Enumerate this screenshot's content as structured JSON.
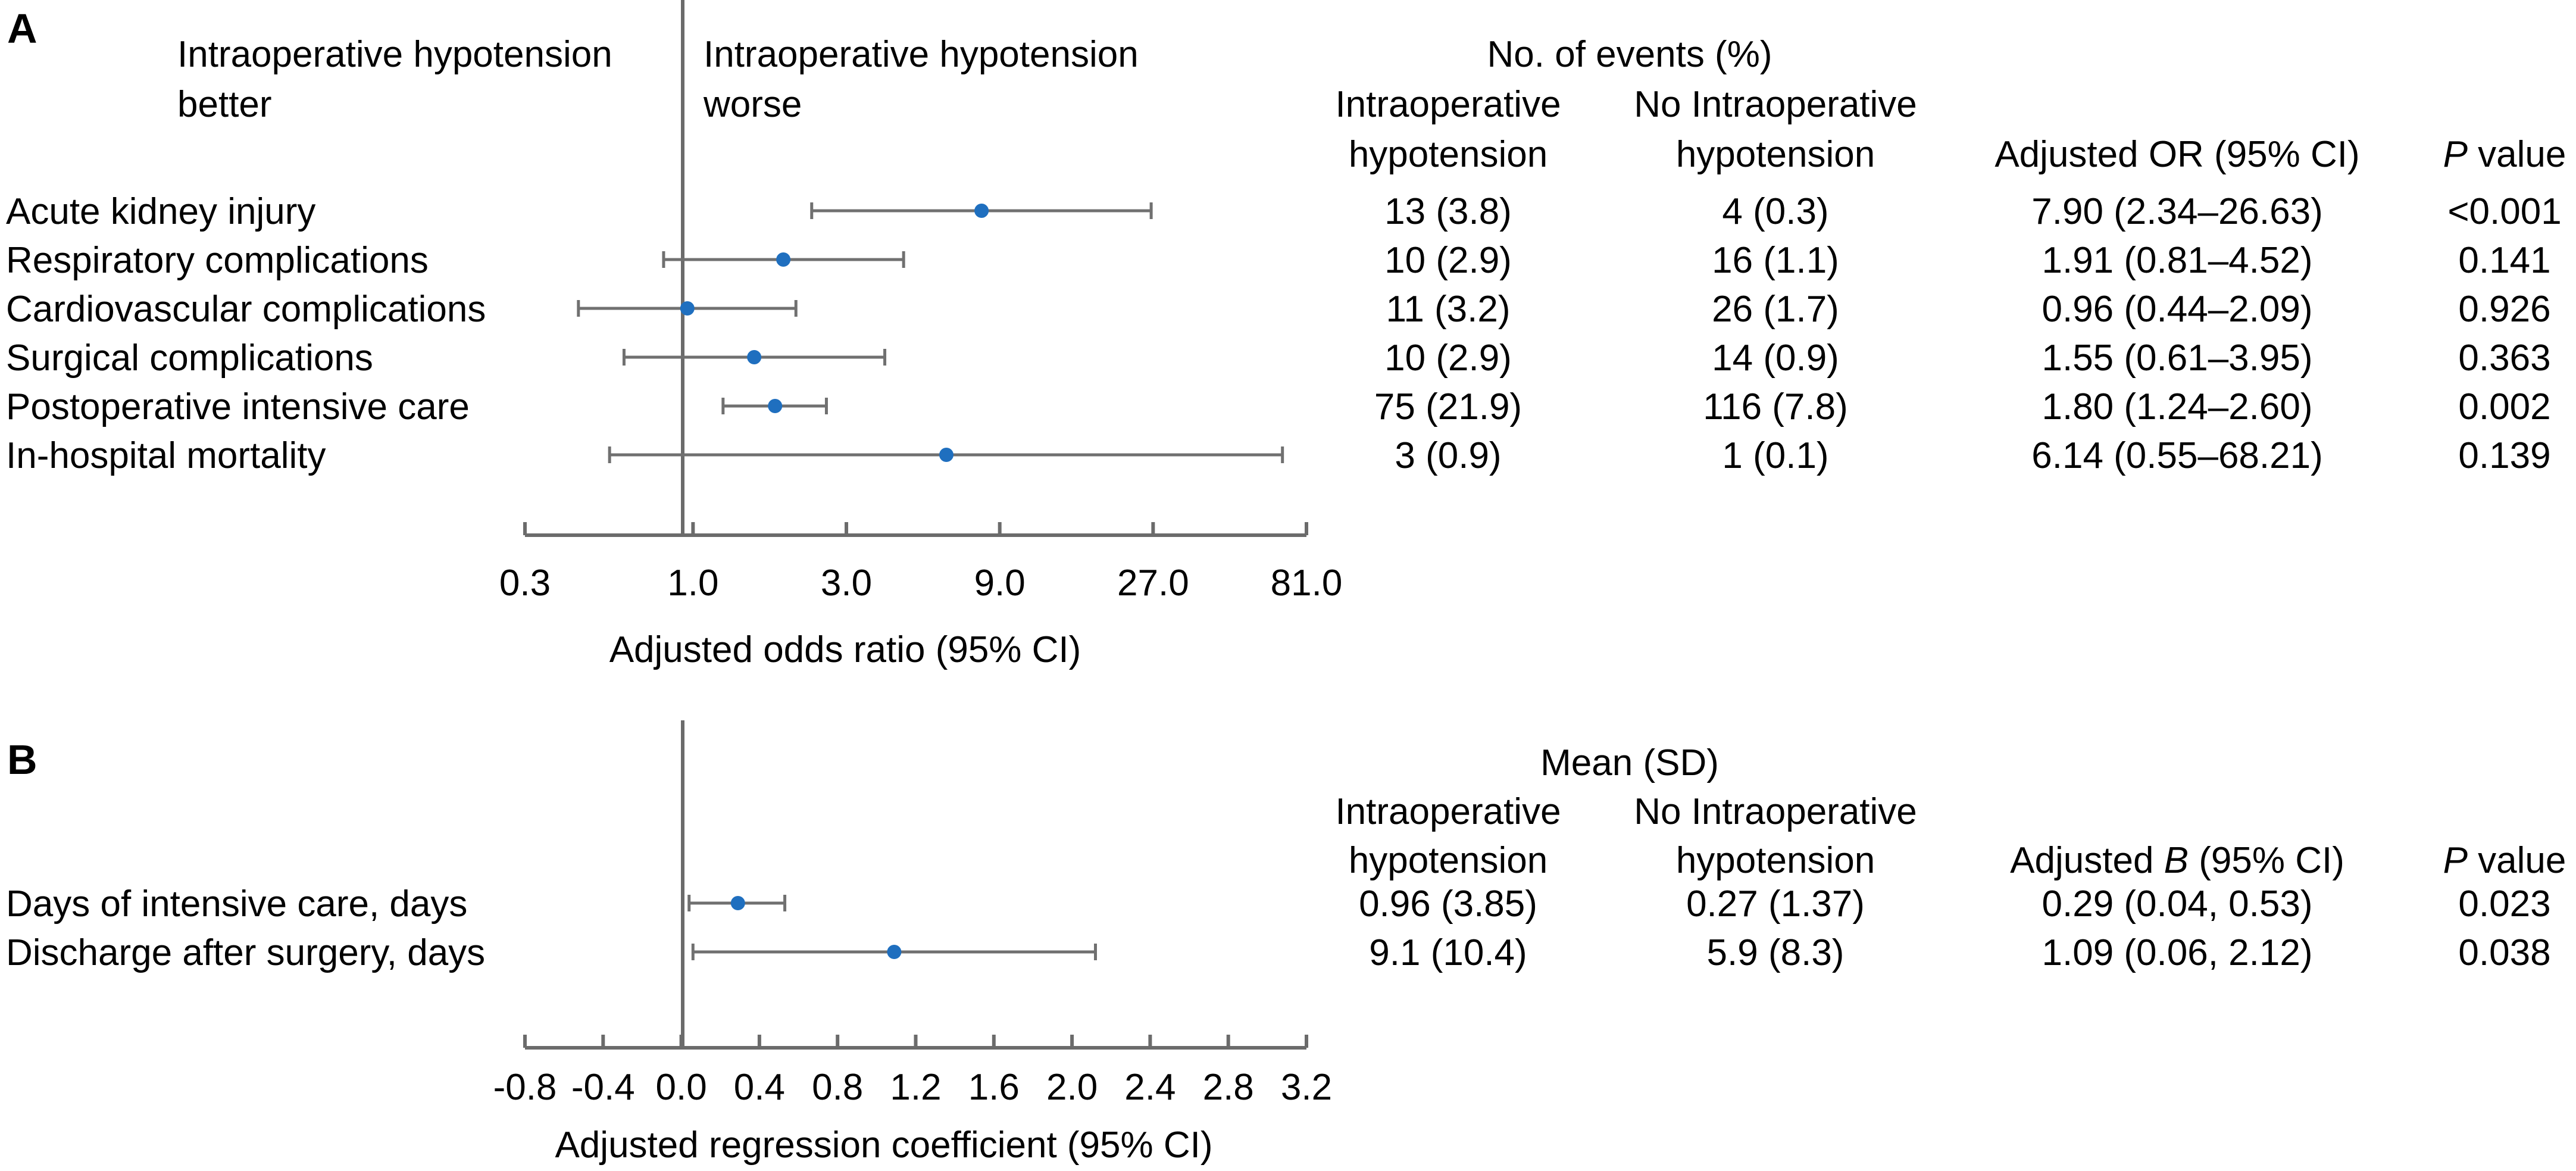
{
  "panel_a": {
    "letter": "A",
    "better_label": [
      "Intraoperative hypotension",
      "better"
    ],
    "worse_label": [
      "Intraoperative hypotension",
      "worse"
    ],
    "events_header": "No. of events (%)",
    "col_io": [
      "Intraoperative",
      "hypotension"
    ],
    "col_no": [
      "No Intraoperative",
      "hypotension"
    ],
    "col_est": "Adjusted OR (95% CI)",
    "col_p_italic": "P",
    "col_p_rest": " value",
    "xlabel": "Adjusted odds ratio (95% CI)"
  },
  "panel_b": {
    "letter": "B",
    "mean_header": "Mean (SD)",
    "col_io": [
      "Intraoperative",
      "hypotension"
    ],
    "col_no": [
      "No Intraoperative",
      "hypotension"
    ],
    "col_est_pre": "Adjusted ",
    "col_est_italic": "B",
    "col_est_post": " (95% CI)",
    "col_p_italic": "P",
    "col_p_rest": " value",
    "xlabel": "Adjusted regression coefficient (95% CI)"
  },
  "colors": {
    "point": "#1f6fbf",
    "axis": "#6b6b6b",
    "ci": "#707070"
  },
  "chart_data": [
    {
      "type": "forest",
      "panel": "A",
      "scale": "log3",
      "xlim": [
        0.3,
        81.0
      ],
      "reference": 1.0,
      "ticks": [
        "0.3",
        "1.0",
        "3.0",
        "9.0",
        "27.0",
        "81.0"
      ],
      "xlabel": "Adjusted odds ratio (95% CI)",
      "rows": [
        {
          "label": "Acute kidney injury",
          "io": "13 (3.8)",
          "no": "4 (0.3)",
          "est_text": "7.90 (2.34–26.63)",
          "p": "<0.001",
          "est": 7.9,
          "lo": 2.34,
          "hi": 26.63
        },
        {
          "label": "Respiratory complications",
          "io": "10 (2.9)",
          "no": "16 (1.1)",
          "est_text": "1.91 (0.81–4.52)",
          "p": "0.141",
          "est": 1.91,
          "lo": 0.81,
          "hi": 4.52
        },
        {
          "label": "Cardiovascular complications",
          "io": "11 (3.2)",
          "no": "26 (1.7)",
          "est_text": "0.96 (0.44–2.09)",
          "p": "0.926",
          "est": 0.96,
          "lo": 0.44,
          "hi": 2.09
        },
        {
          "label": "Surgical complications",
          "io": "10 (2.9)",
          "no": "14 (0.9)",
          "est_text": "1.55 (0.61–3.95)",
          "p": "0.363",
          "est": 1.55,
          "lo": 0.61,
          "hi": 3.95
        },
        {
          "label": "Postoperative intensive care",
          "io": "75 (21.9)",
          "no": "116 (7.8)",
          "est_text": "1.80 (1.24–2.60)",
          "p": "0.002",
          "est": 1.8,
          "lo": 1.24,
          "hi": 2.6
        },
        {
          "label": "In-hospital mortality",
          "io": "3 (0.9)",
          "no": "1 (0.1)",
          "est_text": "6.14 (0.55–68.21)",
          "p": "0.139",
          "est": 6.14,
          "lo": 0.55,
          "hi": 68.21
        }
      ]
    },
    {
      "type": "forest",
      "panel": "B",
      "scale": "linear",
      "xlim": [
        -0.8,
        3.2
      ],
      "reference": 0.0,
      "ticks": [
        "-0.8",
        "-0.4",
        "0.0",
        "0.4",
        "0.8",
        "1.2",
        "1.6",
        "2.0",
        "2.4",
        "2.8",
        "3.2"
      ],
      "xlabel": "Adjusted regression coefficient (95% CI)",
      "rows": [
        {
          "label": "Days of intensive care, days",
          "io": "0.96 (3.85)",
          "no": "0.27 (1.37)",
          "est_text": "0.29 (0.04, 0.53)",
          "p": "0.023",
          "est": 0.29,
          "lo": 0.04,
          "hi": 0.53
        },
        {
          "label": "Discharge after surgery, days",
          "io": "9.1 (10.4)",
          "no": "5.9 (8.3)",
          "est_text": "1.09 (0.06, 2.12)",
          "p": "0.038",
          "est": 1.09,
          "lo": 0.06,
          "hi": 2.12
        }
      ]
    }
  ]
}
